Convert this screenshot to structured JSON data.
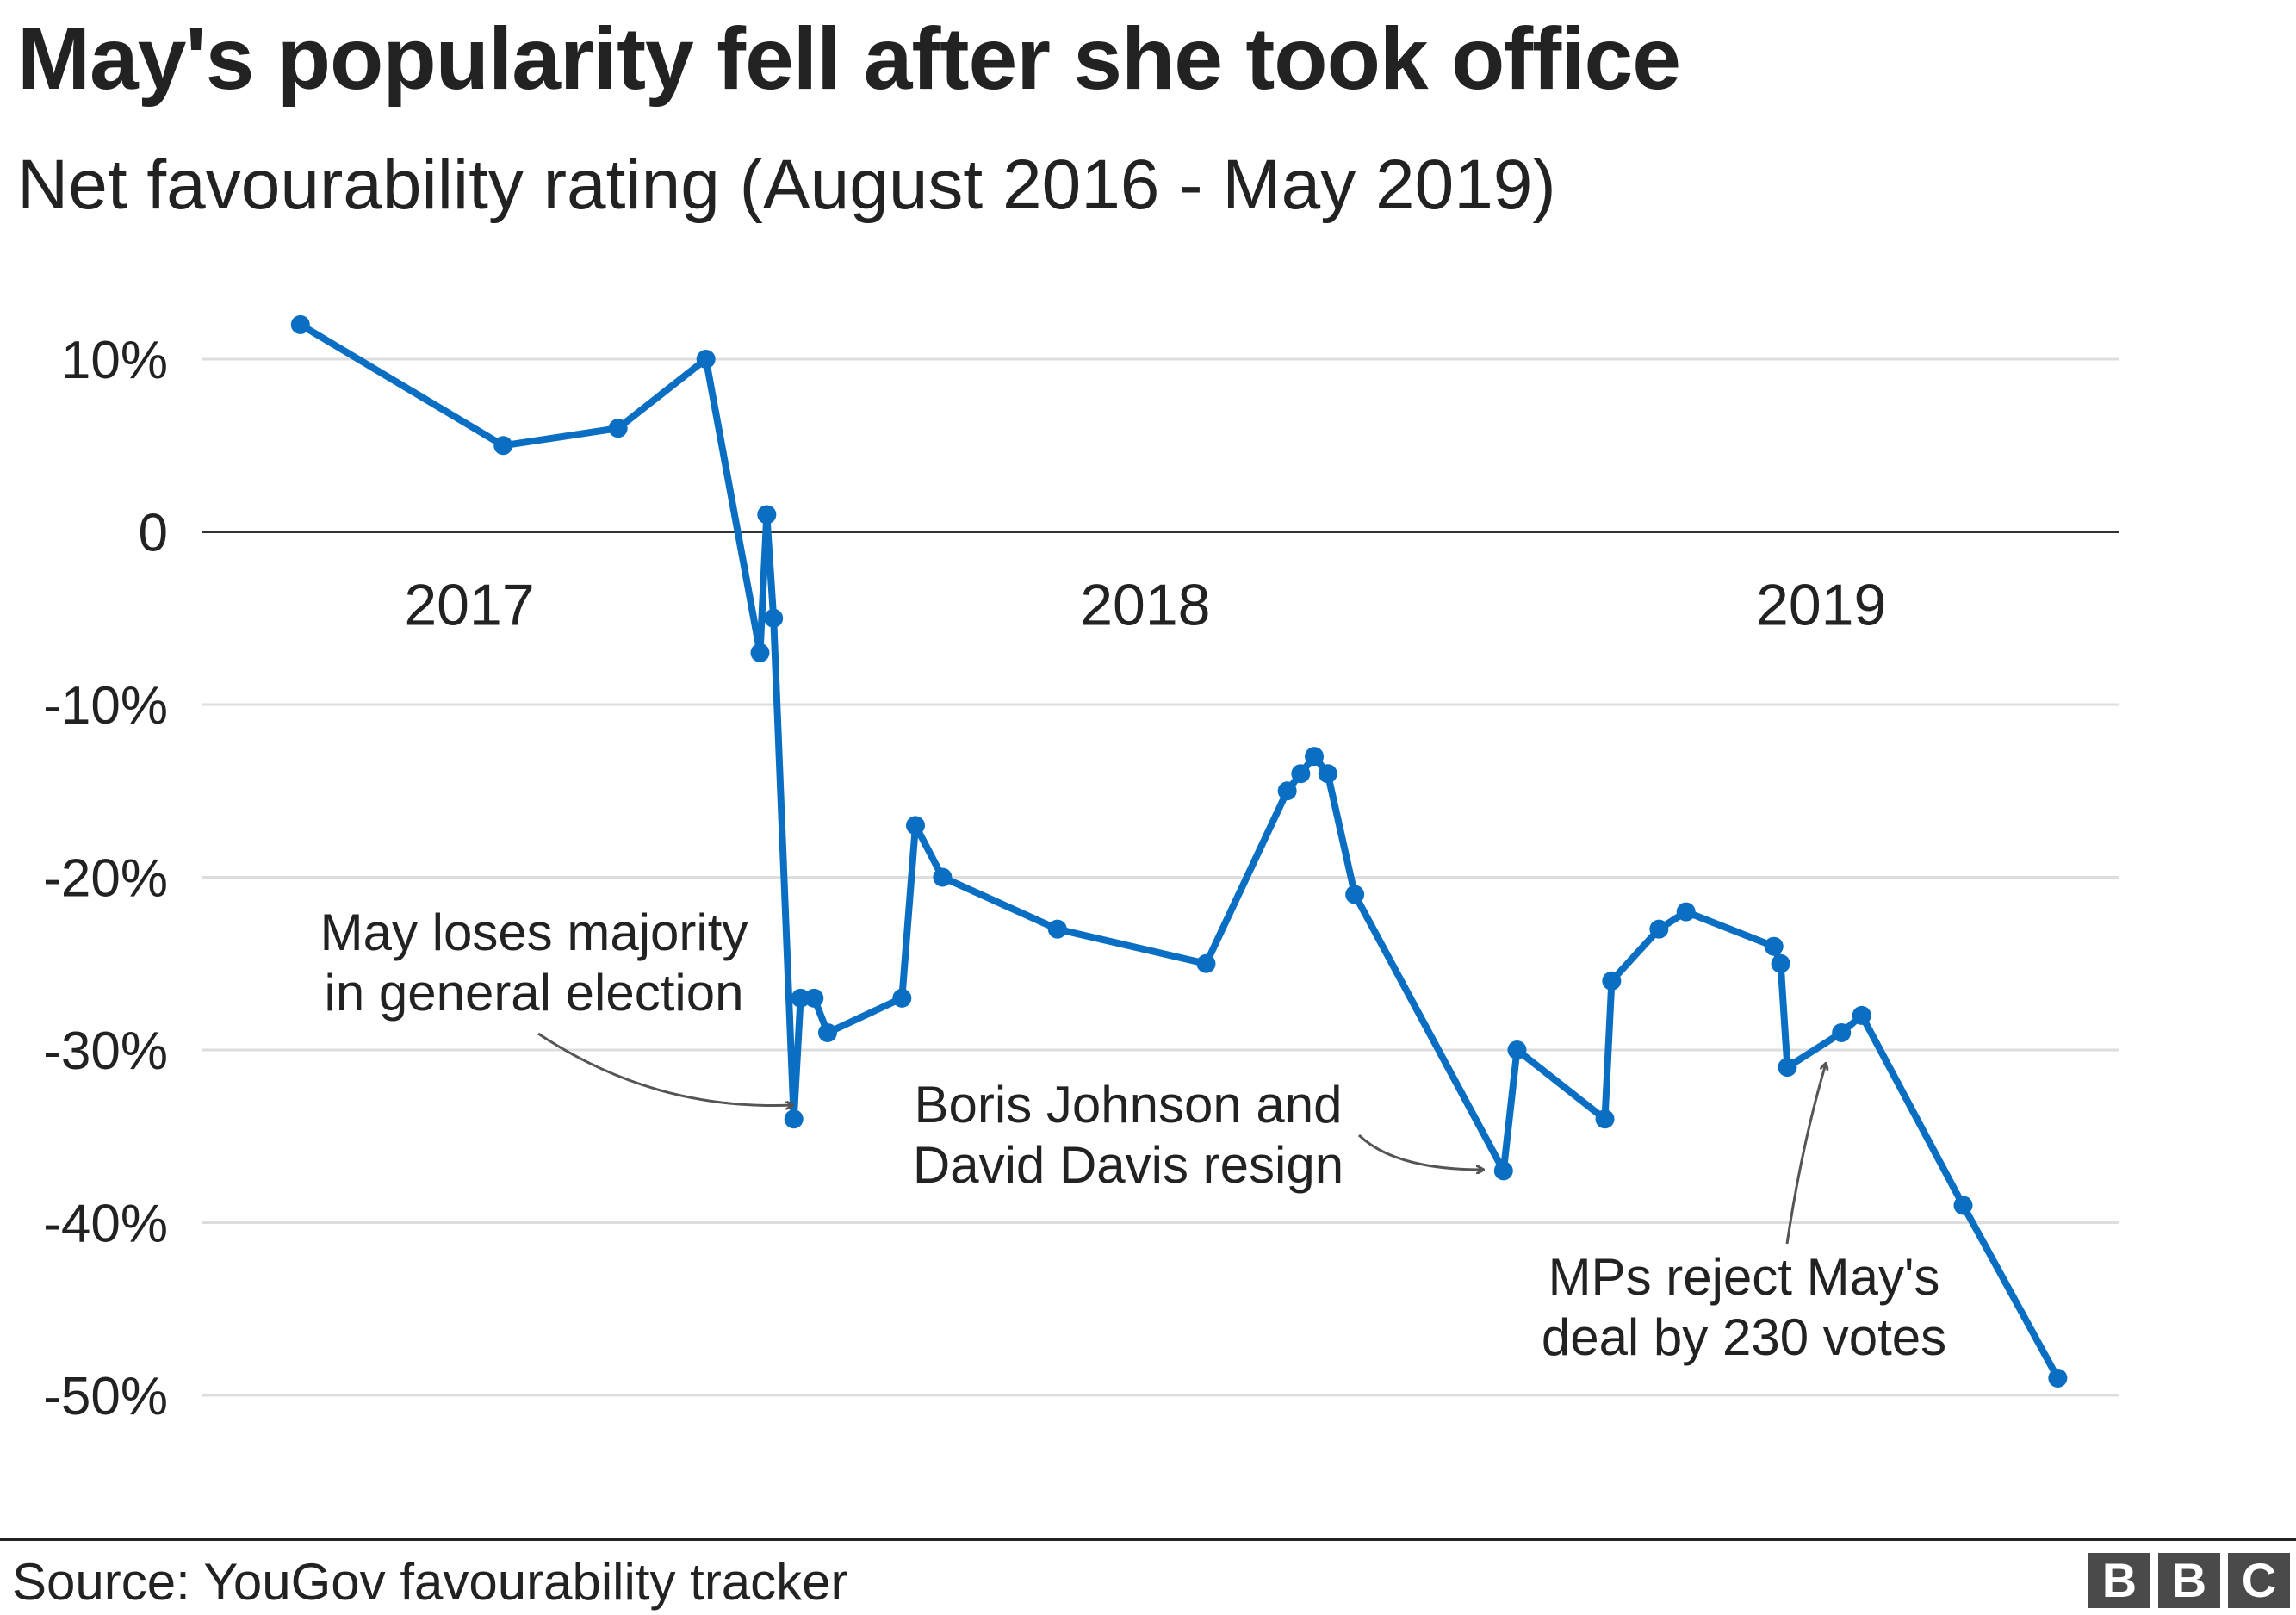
{
  "title": "May's popularity fell after she took office",
  "subtitle": "Net favourability rating (August 2016 - May 2019)",
  "source": "Source: YouGov favourability tracker",
  "logo": {
    "letters": [
      "B",
      "B",
      "C"
    ],
    "color": "#4a4a4a"
  },
  "colors": {
    "line": "#0a6fc2",
    "gridline": "#dddddd",
    "zeroline": "#333333",
    "annotation_arrow": "#555555"
  },
  "chart_data": {
    "type": "line",
    "title": "May's popularity fell after she took office",
    "subtitle": "Net favourability rating (August 2016 - May 2019)",
    "xlabel": "",
    "ylabel": "",
    "xlim": [
      2016.605,
      2019.44
    ],
    "ylim": [
      -50,
      10
    ],
    "yticks": [
      10,
      0,
      -10,
      -20,
      -30,
      -40,
      -50
    ],
    "ytick_labels": [
      "10%",
      "0",
      "-10%",
      "-20%",
      "-30%",
      "-40%",
      "-50%"
    ],
    "xticks": [
      2017.0,
      2018.0,
      2019.0
    ],
    "xtick_labels": [
      "2017",
      "2018",
      "2019"
    ],
    "grid": true,
    "legend": "none",
    "series": [
      {
        "name": "Net favourability",
        "x": [
          2016.75,
          2017.05,
          2017.22,
          2017.35,
          2017.43,
          2017.44,
          2017.45,
          2017.48,
          2017.49,
          2017.51,
          2017.53,
          2017.64,
          2017.66,
          2017.7,
          2017.87,
          2018.09,
          2018.21,
          2018.23,
          2018.25,
          2018.27,
          2018.31,
          2018.53,
          2018.55,
          2018.68,
          2018.69,
          2018.76,
          2018.8,
          2018.93,
          2018.94,
          2018.95,
          2019.03,
          2019.06,
          2019.21,
          2019.35
        ],
        "y": [
          12,
          5,
          6,
          10,
          -7,
          1,
          -5,
          -34,
          -27,
          -27,
          -29,
          -27,
          -17,
          -20,
          -23,
          -25,
          -15,
          -14,
          -13,
          -14,
          -21,
          -37,
          -30,
          -34,
          -26,
          -23,
          -22,
          -24,
          -25,
          -31,
          -29,
          -28,
          -39,
          -49
        ]
      }
    ],
    "annotations": [
      {
        "lines": [
          "May loses majority",
          "in general election"
        ],
        "x": 2017.48,
        "y": -34
      },
      {
        "lines": [
          "Boris Johnson and",
          "David Davis resign"
        ],
        "x": 2018.53,
        "y": -37
      },
      {
        "lines": [
          "MPs reject May's",
          "deal by 230 votes"
        ],
        "x": 2019.035,
        "y": -30
      }
    ]
  }
}
